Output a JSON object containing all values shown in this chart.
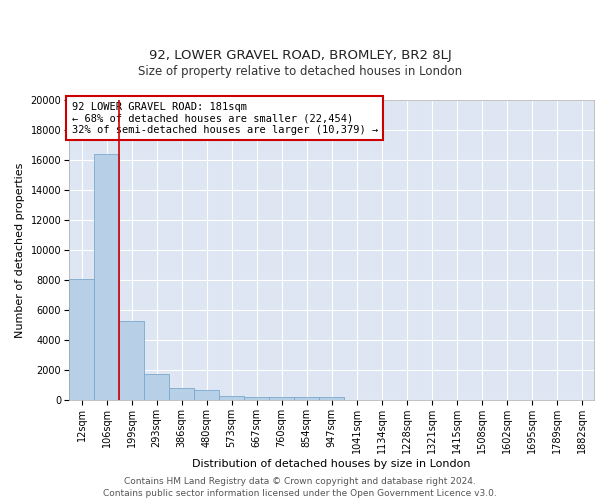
{
  "title1": "92, LOWER GRAVEL ROAD, BROMLEY, BR2 8LJ",
  "title2": "Size of property relative to detached houses in London",
  "xlabel": "Distribution of detached houses by size in London",
  "ylabel": "Number of detached properties",
  "bin_labels": [
    "12sqm",
    "106sqm",
    "199sqm",
    "293sqm",
    "386sqm",
    "480sqm",
    "573sqm",
    "667sqm",
    "760sqm",
    "854sqm",
    "947sqm",
    "1041sqm",
    "1134sqm",
    "1228sqm",
    "1321sqm",
    "1415sqm",
    "1508sqm",
    "1602sqm",
    "1695sqm",
    "1789sqm",
    "1882sqm"
  ],
  "bar_heights": [
    8100,
    16400,
    5300,
    1750,
    800,
    680,
    300,
    230,
    210,
    190,
    170,
    0,
    0,
    0,
    0,
    0,
    0,
    0,
    0,
    0,
    0
  ],
  "bar_color": "#b8cfe8",
  "bar_edge_color": "#7aa8cc",
  "background_color": "#dde6f2",
  "annotation_text": "92 LOWER GRAVEL ROAD: 181sqm\n← 68% of detached houses are smaller (22,454)\n32% of semi-detached houses are larger (10,379) →",
  "annotation_box_color": "#ffffff",
  "annotation_box_edge": "#cc0000",
  "red_line_bin_index": 1.48,
  "ylim": [
    0,
    20000
  ],
  "yticks": [
    0,
    2000,
    4000,
    6000,
    8000,
    10000,
    12000,
    14000,
    16000,
    18000,
    20000
  ],
  "footer": "Contains HM Land Registry data © Crown copyright and database right 2024.\nContains public sector information licensed under the Open Government Licence v3.0.",
  "title1_fontsize": 9.5,
  "title2_fontsize": 8.5,
  "xlabel_fontsize": 8,
  "ylabel_fontsize": 8,
  "tick_fontsize": 7,
  "annotation_fontsize": 7.5,
  "footer_fontsize": 6.5
}
